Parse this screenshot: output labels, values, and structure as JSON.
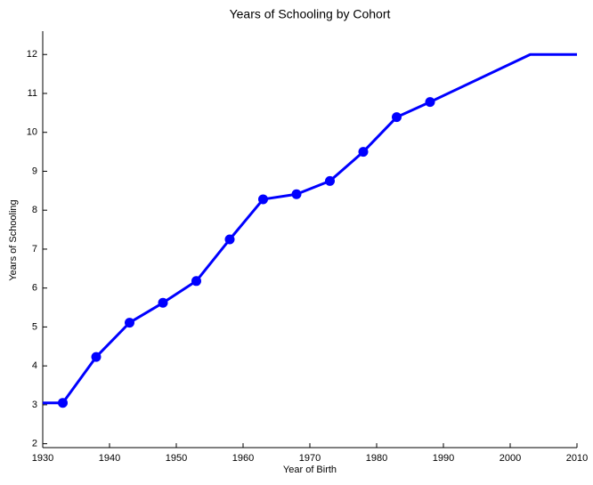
{
  "chart_data": {
    "type": "line",
    "title": "Years of Schooling by Cohort",
    "x_label": "Year of Birth",
    "y_label": "Years of Schooling",
    "xlim": [
      1930,
      2010
    ],
    "xticks": [
      1930,
      1940,
      1950,
      1960,
      1970,
      1980,
      1990,
      2000,
      2010
    ],
    "ylim": [
      1.9,
      12.6
    ],
    "yticks": [
      2,
      3,
      4,
      5,
      6,
      7,
      8,
      9,
      10,
      11,
      12
    ],
    "grid": false,
    "series": [
      {
        "color": "#0000ff",
        "marker": false,
        "line": true,
        "x": [
          1930,
          1933,
          1938,
          1943,
          1948,
          1953,
          1958,
          1963,
          1968,
          1973,
          1978,
          1983,
          1988,
          2003,
          2010
        ],
        "values": [
          3.05,
          3.05,
          4.23,
          5.11,
          5.62,
          6.18,
          7.25,
          8.28,
          8.41,
          8.75,
          9.5,
          10.39,
          10.78,
          12,
          12
        ]
      },
      {
        "color": "#0000ff",
        "marker": true,
        "line": false,
        "x": [
          1933,
          1938,
          1943,
          1948,
          1953,
          1958,
          1963,
          1968,
          1973,
          1978,
          1983,
          1988
        ],
        "values": [
          3.05,
          4.23,
          5.11,
          5.62,
          6.18,
          7.25,
          8.28,
          8.41,
          8.75,
          9.5,
          10.39,
          10.78
        ]
      }
    ]
  }
}
